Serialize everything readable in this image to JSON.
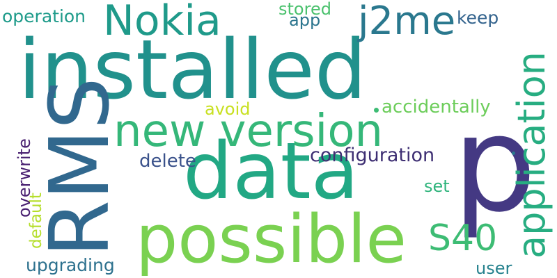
{
  "words": [
    {
      "id": "w-installed",
      "text": "installed",
      "color": "#21918c"
    },
    {
      "id": "w-data",
      "text": "data",
      "color": "#22a884"
    },
    {
      "id": "w-p",
      "text": "p",
      "color": "#443983"
    },
    {
      "id": "w-rms",
      "text": "RMS",
      "color": "#31688e"
    },
    {
      "id": "w-possible",
      "text": "possible",
      "color": "#7ad151"
    },
    {
      "id": "w-new-version",
      "text": "new version",
      "color": "#35b779"
    },
    {
      "id": "w-application",
      "text": "application",
      "color": "#27ad81"
    },
    {
      "id": "w-nokia",
      "text": "Nokia",
      "color": "#1f9a8a"
    },
    {
      "id": "w-j2me",
      "text": "j2me",
      "color": "#2a788e"
    },
    {
      "id": "w-s40",
      "text": "S40",
      "color": "#3dbc74"
    },
    {
      "id": "w-configuration",
      "text": "configuration",
      "color": "#3e2f73"
    },
    {
      "id": "w-accidentally",
      "text": "accidentally",
      "color": "#6ccd5a"
    },
    {
      "id": "w-operation",
      "text": "operation",
      "color": "#1e9b8a"
    },
    {
      "id": "w-stored",
      "text": "stored",
      "color": "#4ac16d"
    },
    {
      "id": "w-app",
      "text": "app",
      "color": "#2b758e"
    },
    {
      "id": "w-keep",
      "text": "keep",
      "color": "#33638d"
    },
    {
      "id": "w-avoid",
      "text": "avoid",
      "color": "#c8e020"
    },
    {
      "id": "w-delete",
      "text": "delete",
      "color": "#3b528b"
    },
    {
      "id": "w-overwrite",
      "text": "overwrite",
      "color": "#481f70"
    },
    {
      "id": "w-default",
      "text": "default",
      "color": "#b5de2b"
    },
    {
      "id": "w-set",
      "text": "set",
      "color": "#2fb47c"
    },
    {
      "id": "w-upgrading",
      "text": "upgrading",
      "color": "#2d718e"
    },
    {
      "id": "w-user",
      "text": "user",
      "color": "#26828e"
    },
    {
      "id": "w-dot1",
      "text": "",
      "color": "#3dbc74"
    },
    {
      "id": "w-dot2",
      "text": "",
      "color": "#2a788e"
    }
  ]
}
